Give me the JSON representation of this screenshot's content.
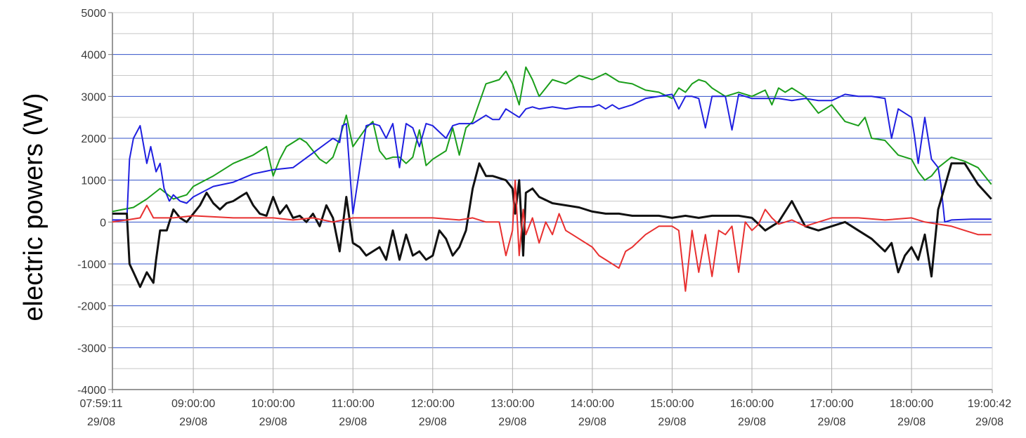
{
  "chart_data": {
    "type": "line",
    "title": "",
    "xlabel": "",
    "ylabel": "electric powers (W)",
    "ylim": [
      -4000,
      5000
    ],
    "xlim": [
      "2000-08-29T07:59:11",
      "2000-08-29T19:00:42"
    ],
    "grid": true,
    "legend": "none",
    "x_ticks": [
      {
        "x": "07:59:11",
        "label": "07:59:11",
        "date": "29/08"
      },
      {
        "x": "09:00:00",
        "label": "09:00:00",
        "date": "29/08"
      },
      {
        "x": "10:00:00",
        "label": "10:00:00",
        "date": "29/08"
      },
      {
        "x": "11:00:00",
        "label": "11:00:00",
        "date": "29/08"
      },
      {
        "x": "12:00:00",
        "label": "12:00:00",
        "date": "29/08"
      },
      {
        "x": "13:00:00",
        "label": "13:00:00",
        "date": "29/08"
      },
      {
        "x": "14:00:00",
        "label": "14:00:00",
        "date": "29/08"
      },
      {
        "x": "15:00:00",
        "label": "15:00:00",
        "date": "29/08"
      },
      {
        "x": "16:00:00",
        "label": "16:00:00",
        "date": "29/08"
      },
      {
        "x": "17:00:00",
        "label": "17:00:00",
        "date": "29/08"
      },
      {
        "x": "18:00:00",
        "label": "18:00:00",
        "date": "29/08"
      },
      {
        "x": "19:00:42",
        "label": "19:00:42",
        "date": "29/08"
      }
    ],
    "y_ticks": [
      5000,
      4000,
      3000,
      2000,
      1000,
      0,
      -1000,
      -2000,
      -3000,
      -4000
    ],
    "series": [
      {
        "color": "#1a9e1a",
        "x": [
          "07:59",
          "08:15",
          "08:25",
          "08:35",
          "08:45",
          "08:55",
          "09:00",
          "09:15",
          "09:30",
          "09:45",
          "09:55",
          "10:00",
          "10:05",
          "10:10",
          "10:15",
          "10:20",
          "10:25",
          "10:30",
          "10:35",
          "10:40",
          "10:45",
          "10:50",
          "10:55",
          "11:00",
          "11:10",
          "11:15",
          "11:20",
          "11:25",
          "11:30",
          "11:35",
          "11:40",
          "11:45",
          "11:50",
          "11:55",
          "12:00",
          "12:10",
          "12:15",
          "12:20",
          "12:25",
          "12:30",
          "12:40",
          "12:50",
          "12:55",
          "13:00",
          "13:05",
          "13:10",
          "13:15",
          "13:20",
          "13:30",
          "13:40",
          "13:50",
          "14:00",
          "14:10",
          "14:20",
          "14:30",
          "14:40",
          "14:50",
          "15:00",
          "15:05",
          "15:10",
          "15:15",
          "15:20",
          "15:25",
          "15:30",
          "15:40",
          "15:50",
          "16:00",
          "16:10",
          "16:15",
          "16:20",
          "16:25",
          "16:30",
          "16:40",
          "16:50",
          "17:00",
          "17:10",
          "17:20",
          "17:25",
          "17:30",
          "17:40",
          "17:50",
          "18:00",
          "18:05",
          "18:10",
          "18:15",
          "18:20",
          "18:30",
          "18:40",
          "18:50",
          "19:00"
        ],
        "y": [
          250,
          350,
          550,
          800,
          550,
          650,
          850,
          1100,
          1400,
          1600,
          1800,
          1100,
          1500,
          1800,
          1900,
          2000,
          1900,
          1700,
          1500,
          1400,
          1550,
          2000,
          2550,
          1800,
          2250,
          2400,
          1700,
          1500,
          1550,
          1550,
          1400,
          1550,
          2200,
          1350,
          1500,
          1700,
          2250,
          1600,
          2250,
          2400,
          3300,
          3400,
          3600,
          3300,
          2800,
          3700,
          3400,
          3000,
          3400,
          3300,
          3500,
          3400,
          3550,
          3350,
          3300,
          3150,
          3100,
          2950,
          3200,
          3100,
          3300,
          3400,
          3350,
          3200,
          3000,
          3100,
          3000,
          3150,
          2800,
          3200,
          3100,
          3200,
          3000,
          2600,
          2800,
          2400,
          2300,
          2500,
          2000,
          1950,
          1600,
          1500,
          1200,
          1000,
          1100,
          1300,
          1550,
          1450,
          1300,
          900
        ]
      },
      {
        "color": "#1f1fe0",
        "x": [
          "07:59",
          "08:10",
          "08:12",
          "08:15",
          "08:20",
          "08:25",
          "08:28",
          "08:32",
          "08:35",
          "08:38",
          "08:42",
          "08:45",
          "08:50",
          "08:55",
          "09:00",
          "09:15",
          "09:30",
          "09:45",
          "10:00",
          "10:15",
          "10:30",
          "10:45",
          "10:50",
          "10:52",
          "10:55",
          "11:00",
          "11:10",
          "11:15",
          "11:20",
          "11:25",
          "11:30",
          "11:35",
          "11:40",
          "11:45",
          "11:50",
          "11:55",
          "12:00",
          "12:10",
          "12:15",
          "12:20",
          "12:30",
          "12:40",
          "12:45",
          "12:50",
          "12:55",
          "13:00",
          "13:05",
          "13:10",
          "13:15",
          "13:20",
          "13:30",
          "13:40",
          "13:50",
          "14:00",
          "14:05",
          "14:10",
          "14:15",
          "14:20",
          "14:30",
          "14:40",
          "14:50",
          "15:00",
          "15:05",
          "15:10",
          "15:15",
          "15:20",
          "15:25",
          "15:30",
          "15:40",
          "15:45",
          "15:50",
          "16:00",
          "16:10",
          "16:20",
          "16:30",
          "16:40",
          "16:50",
          "17:00",
          "17:10",
          "17:20",
          "17:30",
          "17:40",
          "17:45",
          "17:50",
          "18:00",
          "18:02",
          "18:05",
          "18:10",
          "18:15",
          "18:20",
          "18:22",
          "18:25",
          "18:30",
          "18:45",
          "19:00"
        ],
        "y": [
          50,
          50,
          1500,
          2000,
          2300,
          1400,
          1800,
          1200,
          1400,
          800,
          500,
          650,
          500,
          450,
          600,
          850,
          950,
          1150,
          1250,
          1300,
          1650,
          2000,
          1900,
          2300,
          2350,
          200,
          2300,
          2350,
          2300,
          2000,
          2350,
          1300,
          2350,
          2250,
          1800,
          2350,
          2300,
          2000,
          2300,
          2350,
          2350,
          2550,
          2450,
          2450,
          2700,
          2600,
          2500,
          2700,
          2750,
          2700,
          2750,
          2700,
          2750,
          2750,
          2800,
          2700,
          2800,
          2700,
          2800,
          2950,
          3000,
          3050,
          2700,
          3000,
          3000,
          2950,
          2250,
          3000,
          3000,
          2200,
          3050,
          2950,
          2950,
          2950,
          2900,
          2950,
          2900,
          2900,
          3050,
          3000,
          3000,
          2950,
          2000,
          2700,
          2500,
          2100,
          1400,
          2500,
          1500,
          1300,
          900,
          0,
          50,
          70,
          70
        ]
      },
      {
        "color": "#111111",
        "x": [
          "07:59",
          "08:10",
          "08:12",
          "08:15",
          "08:20",
          "08:25",
          "08:30",
          "08:32",
          "08:35",
          "08:40",
          "08:45",
          "08:50",
          "08:55",
          "09:00",
          "09:05",
          "09:10",
          "09:15",
          "09:20",
          "09:25",
          "09:30",
          "09:35",
          "09:40",
          "09:45",
          "09:50",
          "09:55",
          "10:00",
          "10:05",
          "10:10",
          "10:15",
          "10:20",
          "10:25",
          "10:30",
          "10:35",
          "10:40",
          "10:45",
          "10:50",
          "10:55",
          "11:00",
          "11:05",
          "11:10",
          "11:15",
          "11:20",
          "11:25",
          "11:30",
          "11:35",
          "11:40",
          "11:45",
          "11:50",
          "11:55",
          "12:00",
          "12:05",
          "12:10",
          "12:15",
          "12:20",
          "12:25",
          "12:30",
          "12:35",
          "12:40",
          "12:45",
          "12:50",
          "12:55",
          "13:00",
          "13:02",
          "13:05",
          "13:08",
          "13:10",
          "13:15",
          "13:20",
          "13:30",
          "13:40",
          "13:50",
          "14:00",
          "14:10",
          "14:20",
          "14:30",
          "14:40",
          "14:50",
          "15:00",
          "15:10",
          "15:20",
          "15:30",
          "15:40",
          "15:50",
          "16:00",
          "16:10",
          "16:20",
          "16:30",
          "16:40",
          "16:50",
          "17:00",
          "17:10",
          "17:20",
          "17:30",
          "17:40",
          "17:45",
          "17:50",
          "17:55",
          "18:00",
          "18:05",
          "18:10",
          "18:15",
          "18:20",
          "18:30",
          "18:40",
          "18:50",
          "19:00"
        ],
        "y": [
          200,
          200,
          -1000,
          -1200,
          -1550,
          -1200,
          -1450,
          -900,
          -200,
          -200,
          300,
          100,
          0,
          200,
          400,
          700,
          450,
          300,
          450,
          500,
          600,
          700,
          400,
          200,
          150,
          600,
          200,
          400,
          100,
          150,
          0,
          200,
          -100,
          400,
          100,
          -700,
          600,
          -500,
          -600,
          -800,
          -700,
          -600,
          -900,
          -200,
          -900,
          -300,
          -800,
          -700,
          -900,
          -800,
          -200,
          -400,
          -800,
          -600,
          -200,
          800,
          1400,
          1100,
          1100,
          1050,
          1000,
          800,
          200,
          1000,
          -800,
          700,
          800,
          600,
          450,
          400,
          350,
          250,
          200,
          200,
          150,
          150,
          150,
          100,
          150,
          100,
          150,
          150,
          150,
          100,
          -200,
          0,
          500,
          -100,
          -200,
          -100,
          0,
          -200,
          -400,
          -700,
          -500,
          -1200,
          -800,
          -600,
          -900,
          -300,
          -1300,
          300,
          1400,
          1400,
          900,
          550
        ]
      },
      {
        "color": "#e83030",
        "x": [
          "07:59",
          "08:10",
          "08:20",
          "08:25",
          "08:30",
          "08:45",
          "09:00",
          "09:30",
          "10:00",
          "10:15",
          "10:30",
          "10:45",
          "11:00",
          "11:30",
          "12:00",
          "12:20",
          "12:30",
          "12:40",
          "12:50",
          "12:55",
          "13:00",
          "13:02",
          "13:05",
          "13:08",
          "13:10",
          "13:15",
          "13:20",
          "13:25",
          "13:30",
          "13:35",
          "13:40",
          "13:45",
          "13:50",
          "14:00",
          "14:05",
          "14:10",
          "14:15",
          "14:20",
          "14:25",
          "14:30",
          "14:40",
          "14:50",
          "15:00",
          "15:05",
          "15:10",
          "15:15",
          "15:20",
          "15:25",
          "15:30",
          "15:35",
          "15:40",
          "15:45",
          "15:50",
          "15:55",
          "16:00",
          "16:05",
          "16:10",
          "16:15",
          "16:20",
          "16:30",
          "16:40",
          "16:50",
          "17:00",
          "17:20",
          "17:40",
          "18:00",
          "18:10",
          "18:20",
          "18:30",
          "18:40",
          "18:50",
          "19:00"
        ],
        "y": [
          0,
          50,
          100,
          400,
          100,
          100,
          150,
          100,
          100,
          50,
          100,
          0,
          100,
          100,
          100,
          50,
          100,
          0,
          0,
          -800,
          -200,
          1000,
          -800,
          300,
          -300,
          100,
          -500,
          0,
          -300,
          200,
          -200,
          -300,
          -400,
          -600,
          -800,
          -900,
          -1000,
          -1100,
          -700,
          -600,
          -300,
          -100,
          -100,
          -200,
          -1650,
          -200,
          -1200,
          -300,
          -1300,
          -200,
          -300,
          -100,
          -1200,
          0,
          -200,
          -50,
          300,
          100,
          -50,
          50,
          -100,
          0,
          100,
          100,
          50,
          100,
          0,
          -50,
          -100,
          -200,
          -300,
          -300
        ]
      }
    ]
  }
}
